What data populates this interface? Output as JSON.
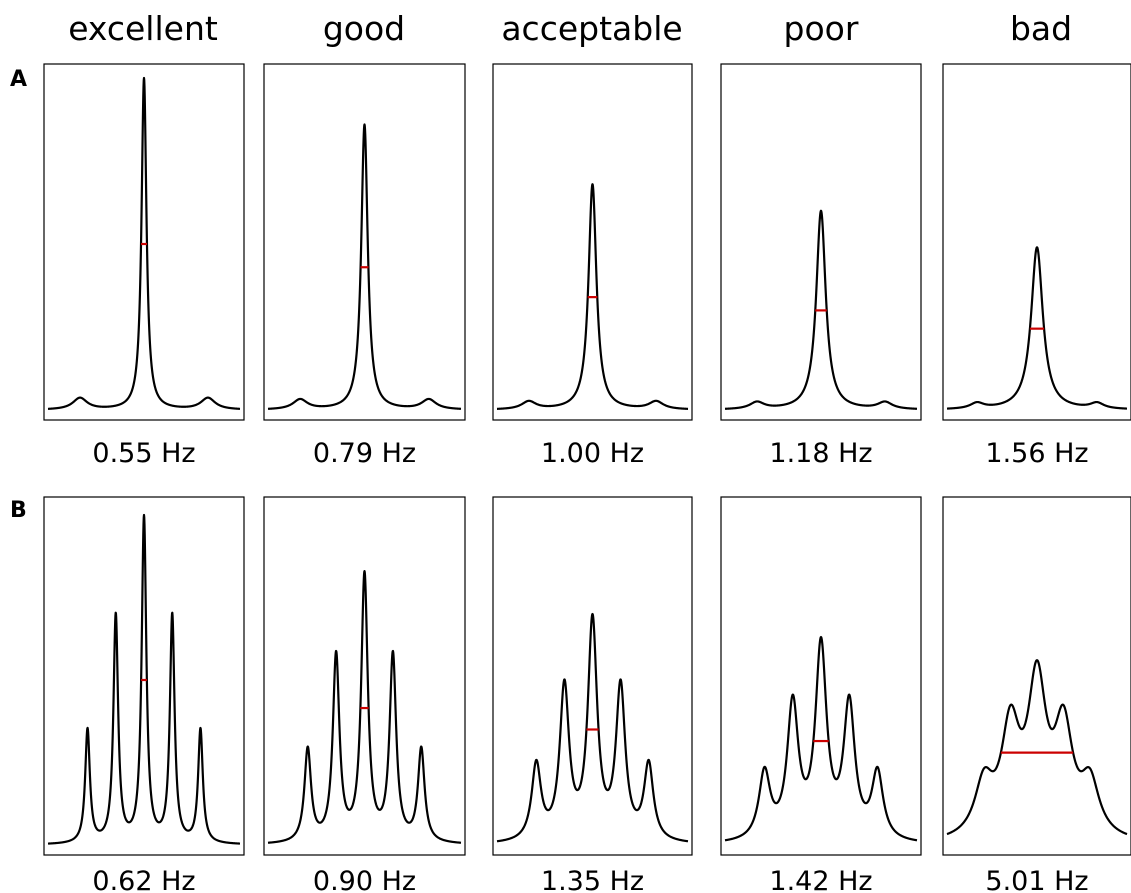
{
  "columns": [
    "excellent",
    "good",
    "acceptable",
    "poor",
    "bad"
  ],
  "rows": [
    {
      "label": "A",
      "linewidths": [
        "0.55 Hz",
        "0.79 Hz",
        "1.00 Hz",
        "1.18 Hz",
        "1.56 Hz"
      ]
    },
    {
      "label": "B",
      "linewidths": [
        "0.62 Hz",
        "0.90 Hz",
        "1.35 Hz",
        "1.42 Hz",
        "5.01 Hz"
      ]
    }
  ],
  "colors": {
    "spectrum": "#000000",
    "fwhm_marker": "#cc0000"
  },
  "chart_data": [
    {
      "type": "line",
      "row": "A",
      "shape": "singlet with small satellite peaks",
      "categories": [
        "excellent",
        "good",
        "acceptable",
        "poor",
        "bad"
      ],
      "fwhm_hz": [
        0.55,
        0.79,
        1.0,
        1.18,
        1.56
      ],
      "peak_height_relative": [
        1.0,
        0.86,
        0.68,
        0.6,
        0.49
      ],
      "grid": false
    },
    {
      "type": "line",
      "row": "B",
      "shape": "quintet",
      "categories": [
        "excellent",
        "good",
        "acceptable",
        "poor",
        "bad"
      ],
      "fwhm_hz": [
        0.62,
        0.9,
        1.35,
        1.42,
        5.01
      ],
      "peak_height_relative": [
        1.0,
        0.83,
        0.7,
        0.63,
        0.56
      ],
      "grid": false
    }
  ]
}
